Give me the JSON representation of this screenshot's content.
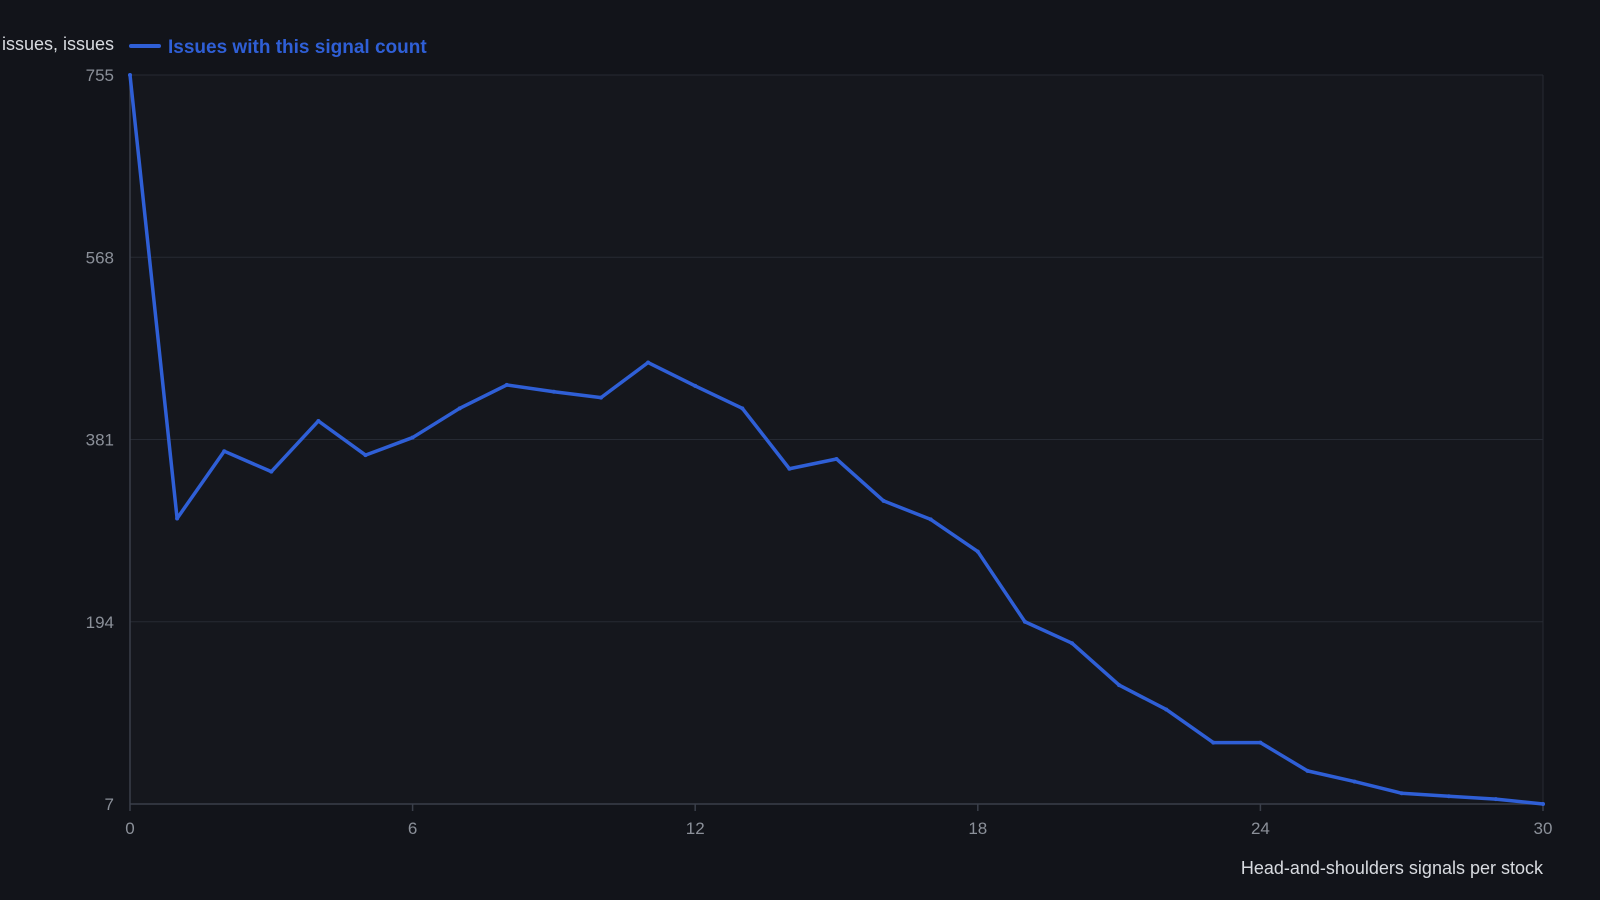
{
  "chart_data": {
    "type": "line",
    "title": "",
    "xlabel": "Head-and-shoulders signals per stock",
    "ylabel": "issues, issues",
    "xlim": [
      0,
      30
    ],
    "ylim": [
      7,
      755
    ],
    "x_ticks": [
      "0",
      "6",
      "12",
      "18",
      "24",
      "30"
    ],
    "y_ticks": [
      "755",
      "568",
      "381",
      "194",
      "7"
    ],
    "grid": true,
    "legend_position": "top-left",
    "series": [
      {
        "name": "Issues with this signal count",
        "color": "#2f5fd6",
        "x": [
          0,
          1,
          2,
          3,
          4,
          5,
          6,
          7,
          8,
          9,
          10,
          11,
          12,
          13,
          14,
          15,
          16,
          17,
          18,
          19,
          20,
          21,
          22,
          23,
          24,
          25,
          26,
          27,
          28,
          29,
          30
        ],
        "values": [
          755,
          300,
          369,
          348,
          400,
          365,
          383,
          413,
          437,
          430,
          424,
          460,
          436,
          413,
          351,
          361,
          318,
          299,
          266,
          194,
          172,
          129,
          104,
          70,
          70,
          41,
          30,
          18,
          15,
          12,
          7
        ]
      }
    ]
  }
}
